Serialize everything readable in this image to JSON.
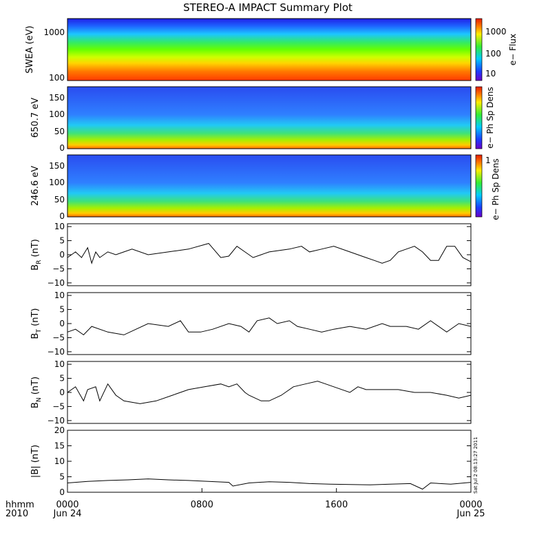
{
  "title": "STEREO-A IMPACT Summary Plot",
  "x_axis": {
    "label_line1": "hhmm",
    "label_line2": "2010",
    "ticks": [
      {
        "t": 0,
        "top": "0000",
        "bottom": "Jun 24"
      },
      {
        "t": 0.3333,
        "top": "0800",
        "bottom": ""
      },
      {
        "t": 0.6667,
        "top": "1600",
        "bottom": ""
      },
      {
        "t": 1,
        "top": "0000",
        "bottom": "Jun 25"
      }
    ]
  },
  "side_stamp": "Sat Jul  2 08:13:27 2011",
  "chart_data": [
    {
      "type": "heatmap",
      "id": "swea",
      "ylabel": "SWEA (eV)",
      "yscale": "log",
      "yticks": [
        "1000",
        "100"
      ],
      "colorbar": {
        "label": "e− Flux",
        "ticks": [
          "1000",
          "100",
          "10"
        ]
      }
    },
    {
      "type": "heatmap",
      "id": "pad650",
      "ylabel": "650.7 eV",
      "ylim": [
        0,
        180
      ],
      "yticks": [
        "150",
        "100",
        "50",
        "0"
      ],
      "colorbar": {
        "label": "e− Ph Sp Dens",
        "ticks": []
      }
    },
    {
      "type": "heatmap",
      "id": "pad246",
      "ylabel": "246.6 eV",
      "ylim": [
        0,
        180
      ],
      "yticks": [
        "150",
        "100",
        "50",
        "0"
      ],
      "colorbar": {
        "label": "e− Ph Sp Dens",
        "ticks": [
          "1"
        ]
      }
    },
    {
      "type": "line",
      "id": "br",
      "ylabel": "B",
      "ylabel_sub": "R",
      "ylabel_unit": "(nT)",
      "ylim": [
        -11,
        11
      ],
      "yticks": [
        "10",
        "5",
        "0",
        "−5",
        "−10"
      ],
      "x": [
        0,
        0.02,
        0.035,
        0.05,
        0.06,
        0.07,
        0.08,
        0.1,
        0.12,
        0.14,
        0.16,
        0.2,
        0.25,
        0.3,
        0.35,
        0.38,
        0.4,
        0.42,
        0.44,
        0.46,
        0.5,
        0.55,
        0.58,
        0.6,
        0.63,
        0.66,
        0.7,
        0.72,
        0.74,
        0.76,
        0.78,
        0.8,
        0.82,
        0.84,
        0.86,
        0.88,
        0.9,
        0.92,
        0.94,
        0.96,
        0.98,
        1.0
      ],
      "y": [
        -1,
        1,
        -1,
        2.5,
        -3,
        1,
        -1,
        1,
        0,
        1,
        2,
        0,
        1,
        2,
        4,
        -1,
        -0.5,
        3,
        1,
        -1,
        1,
        2,
        3,
        1,
        2,
        3,
        1,
        0,
        -1,
        -2,
        -3,
        -2,
        1,
        2,
        3,
        1,
        -2,
        -2,
        3,
        3,
        -1,
        -2.5
      ]
    },
    {
      "type": "line",
      "id": "bt",
      "ylabel": "B",
      "ylabel_sub": "T",
      "ylabel_unit": "(nT)",
      "ylim": [
        -11,
        11
      ],
      "yticks": [
        "10",
        "5",
        "0",
        "−5",
        "−10"
      ],
      "x": [
        0,
        0.02,
        0.04,
        0.06,
        0.1,
        0.14,
        0.17,
        0.2,
        0.25,
        0.28,
        0.3,
        0.33,
        0.36,
        0.4,
        0.43,
        0.45,
        0.47,
        0.5,
        0.52,
        0.55,
        0.57,
        0.6,
        0.63,
        0.66,
        0.7,
        0.74,
        0.78,
        0.8,
        0.84,
        0.87,
        0.9,
        0.94,
        0.97,
        1.0
      ],
      "y": [
        -3,
        -2,
        -4,
        -1,
        -3,
        -4,
        -2,
        0,
        -1,
        1,
        -3,
        -3,
        -2,
        0,
        -1,
        -3,
        1,
        2,
        0,
        1,
        -1,
        -2,
        -3,
        -2,
        -1,
        -2,
        0,
        -1,
        -1,
        -2,
        1,
        -3,
        0,
        -1
      ]
    },
    {
      "type": "line",
      "id": "bn",
      "ylabel": "B",
      "ylabel_sub": "N",
      "ylabel_unit": "(nT)",
      "ylim": [
        -11,
        11
      ],
      "yticks": [
        "10",
        "5",
        "0",
        "−5",
        "−10"
      ],
      "x": [
        0,
        0.02,
        0.04,
        0.05,
        0.07,
        0.08,
        0.1,
        0.12,
        0.14,
        0.18,
        0.22,
        0.26,
        0.3,
        0.34,
        0.38,
        0.4,
        0.42,
        0.44,
        0.45,
        0.48,
        0.5,
        0.53,
        0.56,
        0.59,
        0.62,
        0.64,
        0.66,
        0.7,
        0.72,
        0.74,
        0.78,
        0.82,
        0.86,
        0.9,
        0.94,
        0.97,
        1.0
      ],
      "y": [
        0,
        2,
        -3,
        1,
        2,
        -3,
        3,
        -1,
        -3,
        -4,
        -3,
        -1,
        1,
        2,
        3,
        2,
        3,
        0,
        -1,
        -3,
        -3,
        -1,
        2,
        3,
        4,
        3,
        2,
        0,
        2,
        1,
        1,
        1,
        0,
        0,
        -1,
        -2,
        -1
      ]
    },
    {
      "type": "line",
      "id": "bmag",
      "ylabel": "|B| (nT)",
      "ylim": [
        0,
        20
      ],
      "yticks": [
        "20",
        "15",
        "10",
        "5",
        "0"
      ],
      "x": [
        0,
        0.05,
        0.1,
        0.15,
        0.2,
        0.25,
        0.3,
        0.35,
        0.4,
        0.41,
        0.45,
        0.5,
        0.55,
        0.6,
        0.65,
        0.7,
        0.75,
        0.8,
        0.85,
        0.88,
        0.9,
        0.95,
        1.0
      ],
      "y": [
        3,
        3.5,
        3.8,
        4,
        4.3,
        4,
        3.8,
        3.5,
        3.2,
        2,
        3,
        3.4,
        3.2,
        2.8,
        2.6,
        2.5,
        2.4,
        2.6,
        2.8,
        1,
        3,
        2.6,
        3.2
      ]
    }
  ]
}
